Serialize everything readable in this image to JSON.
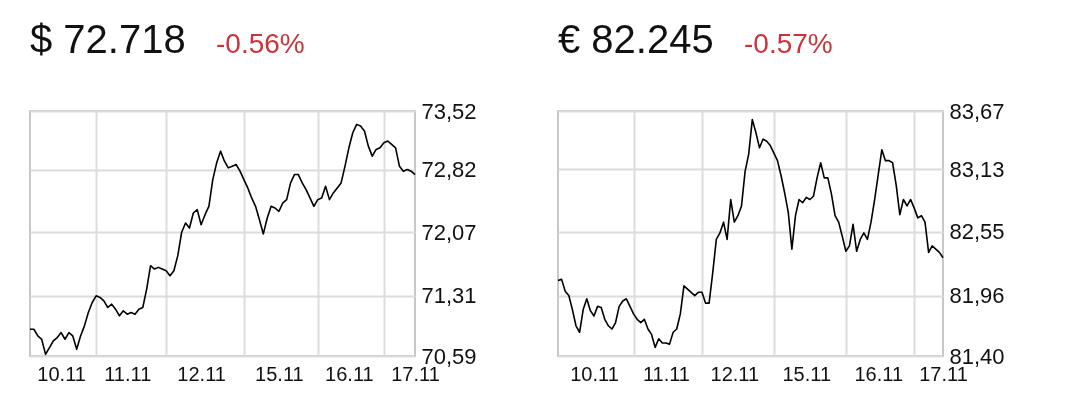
{
  "chart_data": [
    {
      "type": "line",
      "title": "$ 72.718",
      "subtitle": "-0.56%",
      "grid": true,
      "categories": [
        null,
        null,
        null,
        null,
        null,
        null,
        null,
        null,
        "10.11",
        null,
        null,
        null,
        null,
        null,
        null,
        null,
        null,
        null,
        null,
        null,
        null,
        null,
        null,
        null,
        null,
        "11.11",
        null,
        null,
        null,
        null,
        null,
        null,
        null,
        null,
        null,
        null,
        null,
        null,
        null,
        null,
        null,
        null,
        null,
        null,
        "12.11",
        null,
        null,
        null,
        null,
        null,
        null,
        null,
        null,
        null,
        null,
        null,
        null,
        null,
        null,
        null,
        null,
        null,
        null,
        null,
        "15.11",
        null,
        null,
        null,
        null,
        null,
        null,
        null,
        null,
        null,
        null,
        null,
        null,
        null,
        null,
        null,
        null,
        null,
        "16.11",
        null,
        null,
        null,
        null,
        null,
        null,
        null,
        null,
        null,
        null,
        null,
        null,
        null,
        null,
        null,
        null,
        "17.11"
      ],
      "series": [
        {
          "color": "#000000",
          "values": [
            70.91,
            70.91,
            70.83,
            70.79,
            70.61,
            70.69,
            70.77,
            70.81,
            70.87,
            70.79,
            70.87,
            70.83,
            70.67,
            70.83,
            70.95,
            71.11,
            71.23,
            71.31,
            71.29,
            71.25,
            71.17,
            71.21,
            71.15,
            71.07,
            71.13,
            71.09,
            71.11,
            71.09,
            71.15,
            71.17,
            71.39,
            71.67,
            71.63,
            71.65,
            71.63,
            71.61,
            71.55,
            71.61,
            71.79,
            72.07,
            72.18,
            72.12,
            72.3,
            72.34,
            72.16,
            72.28,
            72.38,
            72.7,
            72.9,
            73.04,
            72.92,
            72.84,
            72.86,
            72.88,
            72.8,
            72.7,
            72.6,
            72.48,
            72.38,
            72.22,
            72.05,
            72.24,
            72.38,
            72.36,
            72.32,
            72.42,
            72.46,
            72.66,
            72.76,
            72.76,
            72.66,
            72.58,
            72.48,
            72.38,
            72.46,
            72.48,
            72.62,
            72.46,
            72.54,
            72.6,
            72.66,
            72.86,
            73.08,
            73.26,
            73.36,
            73.34,
            73.28,
            73.1,
            72.98,
            73.06,
            73.08,
            73.14,
            73.16,
            73.12,
            73.08,
            72.86,
            72.8,
            72.82,
            72.8,
            72.76
          ]
        }
      ],
      "ylim": [
        70.59,
        73.52
      ],
      "yticks": [
        {
          "value": 70.59,
          "label": "70,59"
        },
        {
          "value": 71.31,
          "label": "71,31"
        },
        {
          "value": 72.07,
          "label": "72,07"
        },
        {
          "value": 72.82,
          "label": "72,82"
        },
        {
          "value": 73.52,
          "label": "73,52"
        }
      ]
    },
    {
      "type": "line",
      "title": "€ 82.245",
      "subtitle": "-0.57%",
      "grid": true,
      "categories": [
        null,
        null,
        null,
        null,
        null,
        null,
        null,
        null,
        null,
        null,
        "10.11",
        null,
        null,
        null,
        null,
        null,
        null,
        null,
        null,
        null,
        null,
        null,
        null,
        null,
        null,
        null,
        null,
        null,
        null,
        null,
        "11.11",
        null,
        null,
        null,
        null,
        null,
        null,
        null,
        null,
        null,
        null,
        null,
        null,
        null,
        null,
        null,
        null,
        null,
        null,
        "12.11",
        null,
        null,
        null,
        null,
        null,
        null,
        null,
        null,
        null,
        null,
        null,
        null,
        null,
        null,
        null,
        null,
        null,
        null,
        null,
        "15.11",
        null,
        null,
        null,
        null,
        null,
        null,
        null,
        null,
        null,
        null,
        null,
        null,
        null,
        null,
        null,
        null,
        null,
        null,
        null,
        "16.11",
        null,
        null,
        null,
        null,
        null,
        null,
        null,
        null,
        null,
        null,
        null,
        null,
        null,
        null,
        null,
        null,
        null,
        "17.11"
      ],
      "series": [
        {
          "color": "#000000",
          "values": [
            82.1,
            82.11,
            82.0,
            81.96,
            81.83,
            81.68,
            81.62,
            81.83,
            81.93,
            81.82,
            81.77,
            81.86,
            81.85,
            81.74,
            81.68,
            81.65,
            81.71,
            81.86,
            81.91,
            81.93,
            81.86,
            81.79,
            81.74,
            81.71,
            81.74,
            81.65,
            81.6,
            81.48,
            81.56,
            81.52,
            81.52,
            81.51,
            81.62,
            81.65,
            81.79,
            82.05,
            82.02,
            81.99,
            81.96,
            81.99,
            81.99,
            81.89,
            81.89,
            82.17,
            82.48,
            82.54,
            82.64,
            82.48,
            82.85,
            82.64,
            82.7,
            82.79,
            83.11,
            83.27,
            83.59,
            83.47,
            83.33,
            83.41,
            83.39,
            83.35,
            83.28,
            83.21,
            83.07,
            82.91,
            82.73,
            82.39,
            82.7,
            82.85,
            82.82,
            82.87,
            82.85,
            82.88,
            83.05,
            83.19,
            83.05,
            83.05,
            82.9,
            82.7,
            82.64,
            82.51,
            82.37,
            82.42,
            82.62,
            82.37,
            82.48,
            82.54,
            82.48,
            82.64,
            82.85,
            83.08,
            83.31,
            83.21,
            83.21,
            83.19,
            82.98,
            82.71,
            82.85,
            82.79,
            82.85,
            82.77,
            82.68,
            82.7,
            82.64,
            82.36,
            82.42,
            82.39,
            82.36,
            82.31
          ]
        }
      ],
      "ylim": [
        81.4,
        83.67
      ],
      "yticks": [
        {
          "value": 81.4,
          "label": "81,40"
        },
        {
          "value": 81.96,
          "label": "81,96"
        },
        {
          "value": 82.55,
          "label": "82,55"
        },
        {
          "value": 83.13,
          "label": "83,13"
        },
        {
          "value": 83.67,
          "label": "83,67"
        }
      ]
    }
  ]
}
